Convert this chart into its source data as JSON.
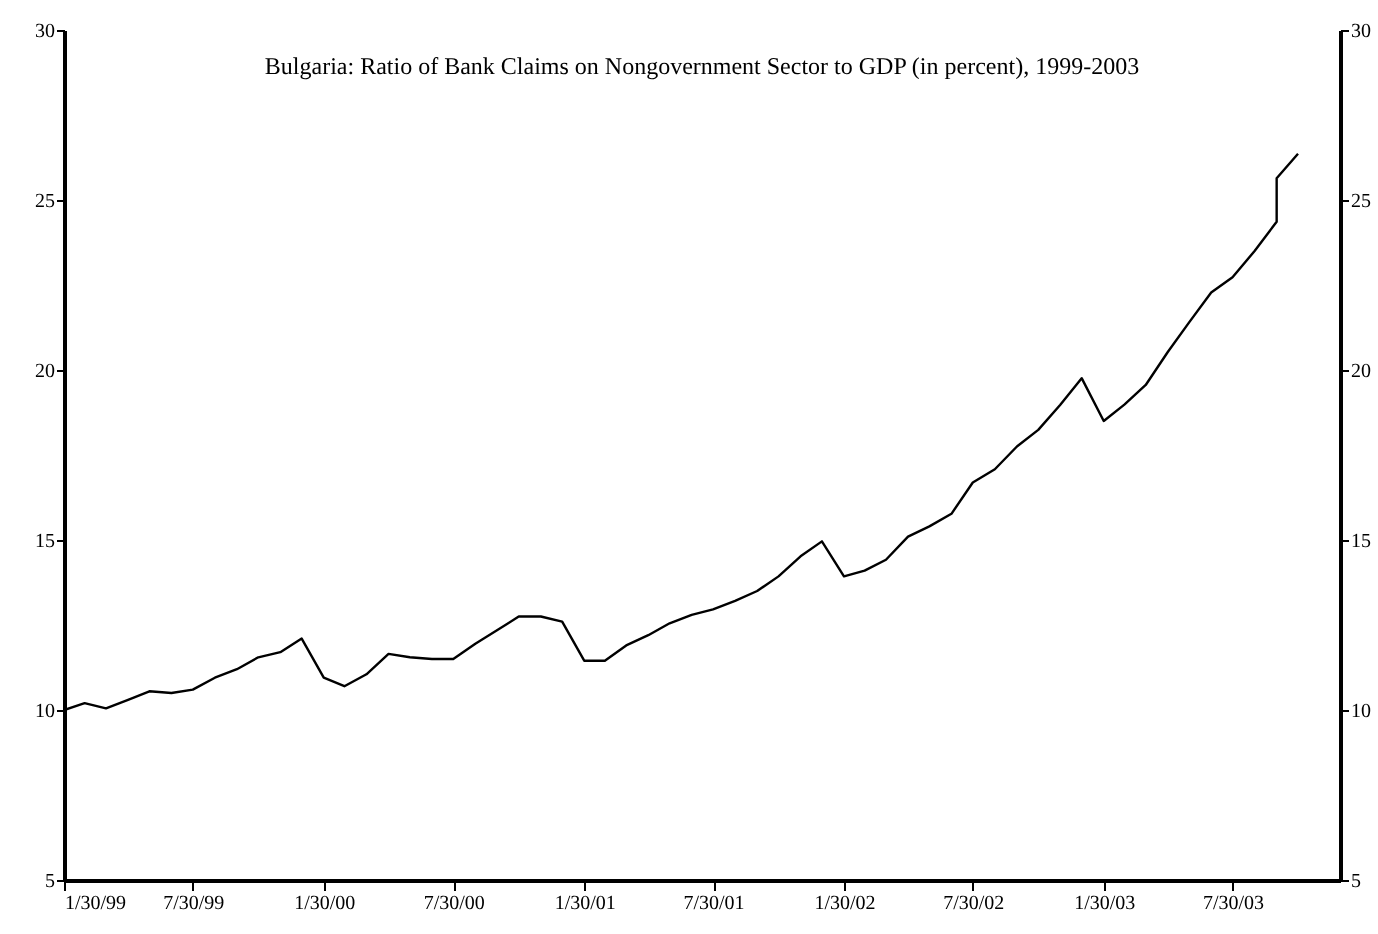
{
  "chart_data": {
    "type": "line",
    "title": "Bulgaria: Ratio of Bank Claims on Nongovernment Sector to GDP (in percent), 1999-2003",
    "x": [
      "1999-01-30",
      "1999-02-28",
      "1999-03-30",
      "1999-04-30",
      "1999-05-30",
      "1999-06-30",
      "1999-07-30",
      "1999-08-30",
      "1999-09-30",
      "1999-10-30",
      "1999-11-30",
      "1999-12-30",
      "2000-01-30",
      "2000-02-28",
      "2000-03-30",
      "2000-04-30",
      "2000-05-30",
      "2000-06-30",
      "2000-07-30",
      "2000-08-30",
      "2000-09-30",
      "2000-10-30",
      "2000-11-30",
      "2000-12-30",
      "2001-01-30",
      "2001-02-28",
      "2001-03-30",
      "2001-04-30",
      "2001-05-30",
      "2001-06-30",
      "2001-07-30",
      "2001-08-30",
      "2001-09-30",
      "2001-10-30",
      "2001-11-30",
      "2001-12-30",
      "2002-01-30",
      "2002-02-28",
      "2002-03-30",
      "2002-04-30",
      "2002-05-30",
      "2002-06-30",
      "2002-07-30",
      "2002-08-30",
      "2002-09-30",
      "2002-10-30",
      "2002-11-30",
      "2002-12-30",
      "2003-01-30",
      "2003-02-28",
      "2003-03-30",
      "2003-04-30",
      "2003-05-30",
      "2003-06-30",
      "2003-07-30",
      "2003-08-30",
      "2003-09-30",
      "2003-09-30",
      "2003-10-30"
    ],
    "series": [
      {
        "color": "#000000",
        "values": [
          10.0,
          10.2,
          10.05,
          10.3,
          10.55,
          10.5,
          10.6,
          10.95,
          11.2,
          11.55,
          11.7,
          12.1,
          10.95,
          10.7,
          11.05,
          11.65,
          11.55,
          11.5,
          11.5,
          11.95,
          12.35,
          12.75,
          12.75,
          12.6,
          11.45,
          11.45,
          11.9,
          12.2,
          12.55,
          12.8,
          12.96,
          13.21,
          13.5,
          13.93,
          14.52,
          14.96,
          13.93,
          14.1,
          14.42,
          15.1,
          15.4,
          15.77,
          16.69,
          17.08,
          17.75,
          18.24,
          18.98,
          19.76,
          18.5,
          18.98,
          19.56,
          20.53,
          21.4,
          22.28,
          22.73,
          23.5,
          24.36,
          25.64,
          26.36
        ]
      }
    ],
    "xlim": [
      "1999-01-30",
      "2003-12-28"
    ],
    "xticks": [
      {
        "value": "1999-01-30",
        "label": "1/30/99"
      },
      {
        "value": "1999-07-30",
        "label": "7/30/99"
      },
      {
        "value": "2000-01-30",
        "label": "1/30/00"
      },
      {
        "value": "2000-07-30",
        "label": "7/30/00"
      },
      {
        "value": "2001-01-30",
        "label": "1/30/01"
      },
      {
        "value": "2001-07-30",
        "label": "7/30/01"
      },
      {
        "value": "2002-01-30",
        "label": "1/30/02"
      },
      {
        "value": "2002-07-30",
        "label": "7/30/02"
      },
      {
        "value": "2003-01-30",
        "label": "1/30/03"
      },
      {
        "value": "2003-07-30",
        "label": "7/30/03"
      }
    ],
    "ylim": [
      5,
      30
    ],
    "yticks": [
      5,
      10,
      15,
      20,
      25,
      30
    ],
    "y2lim": [
      5,
      30
    ],
    "y2ticks": [
      5,
      10,
      15,
      20,
      25,
      30
    ],
    "grid": false,
    "legend": false
  }
}
